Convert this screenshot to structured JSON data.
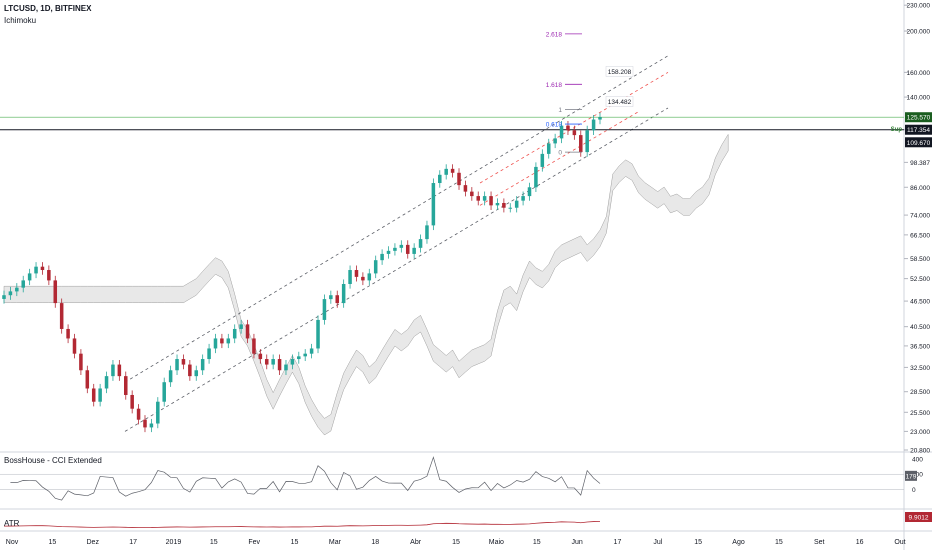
{
  "header": {
    "symbol": "LTCUSD, 1D, BITFINEX",
    "indicator": "Ichimoku"
  },
  "panes": {
    "cci_title": "BossHouse - CCI Extended",
    "atr_title": "ATR"
  },
  "colors": {
    "up": "#26a69a",
    "down": "#b22833",
    "cloud": "#e0e0e0",
    "channel": "#5d6068",
    "target": "#ef5350",
    "fib": "#9c27b0",
    "fib_blue": "#2962ff"
  },
  "chart_data": {
    "type": "candlestick",
    "scale": "log",
    "ylim": [
      20.8,
      234.0
    ],
    "y_ticks": [
      "20.800",
      "23.000",
      "25.500",
      "28.500",
      "32.500",
      "36.500",
      "40.500",
      "46.500",
      "52.500",
      "58.500",
      "66.500",
      "74.000",
      "86.000",
      "98.387",
      "117.354",
      "140.000",
      "160.000",
      "200.000",
      "230.000"
    ],
    "x_ticks": [
      "Nov",
      "15",
      "Dez",
      "17",
      "2019",
      "15",
      "Fev",
      "15",
      "Mar",
      "18",
      "Abr",
      "15",
      "Maio",
      "15",
      "Jun",
      "17",
      "Jul",
      "15",
      "Ago",
      "15",
      "Set",
      "16",
      "Out"
    ],
    "price_labels": [
      {
        "value": "125.570",
        "color": "#1b5e20"
      },
      {
        "value": "117.354",
        "color": "#131722"
      },
      {
        "value": "109.670",
        "color": "#131722"
      }
    ],
    "sup_label": "Sup",
    "close": [
      48,
      49,
      50,
      52,
      54,
      56,
      55,
      52,
      46,
      40,
      38,
      35,
      32,
      29,
      27,
      29,
      31,
      33,
      31,
      28,
      26,
      24.5,
      23.5,
      24,
      27,
      30,
      32,
      34,
      33,
      31,
      32,
      34,
      36,
      38,
      37,
      38,
      40,
      41,
      38,
      35,
      34,
      33,
      34,
      32,
      33,
      34,
      34.5,
      35,
      36,
      42,
      47,
      48,
      46,
      51,
      55,
      53,
      52,
      54,
      58,
      60,
      61,
      62,
      63,
      60,
      62,
      65,
      70,
      88,
      92,
      95,
      93,
      87,
      84,
      82,
      80,
      82,
      78,
      79,
      77,
      77,
      80,
      82,
      86,
      96,
      103,
      109,
      112,
      120,
      117,
      114,
      104,
      117,
      124,
      125.57
    ],
    "fib_levels": [
      {
        "label": "2.618",
        "value": 197
      },
      {
        "label": "1.618",
        "value": 150
      },
      {
        "label": "1",
        "value": 131
      },
      {
        "label": "0.618",
        "value": 121
      },
      {
        "label": "0",
        "value": 104
      }
    ],
    "targets": [
      "158.208",
      "134.482"
    ],
    "cci": {
      "title": "BossHouse - CCI Extended",
      "value_label": "179",
      "ticks": [
        "400",
        "200",
        "0"
      ],
      "ylim": [
        -200,
        450
      ]
    },
    "atr": {
      "title": "ATR",
      "value_label": "9.9012"
    }
  }
}
